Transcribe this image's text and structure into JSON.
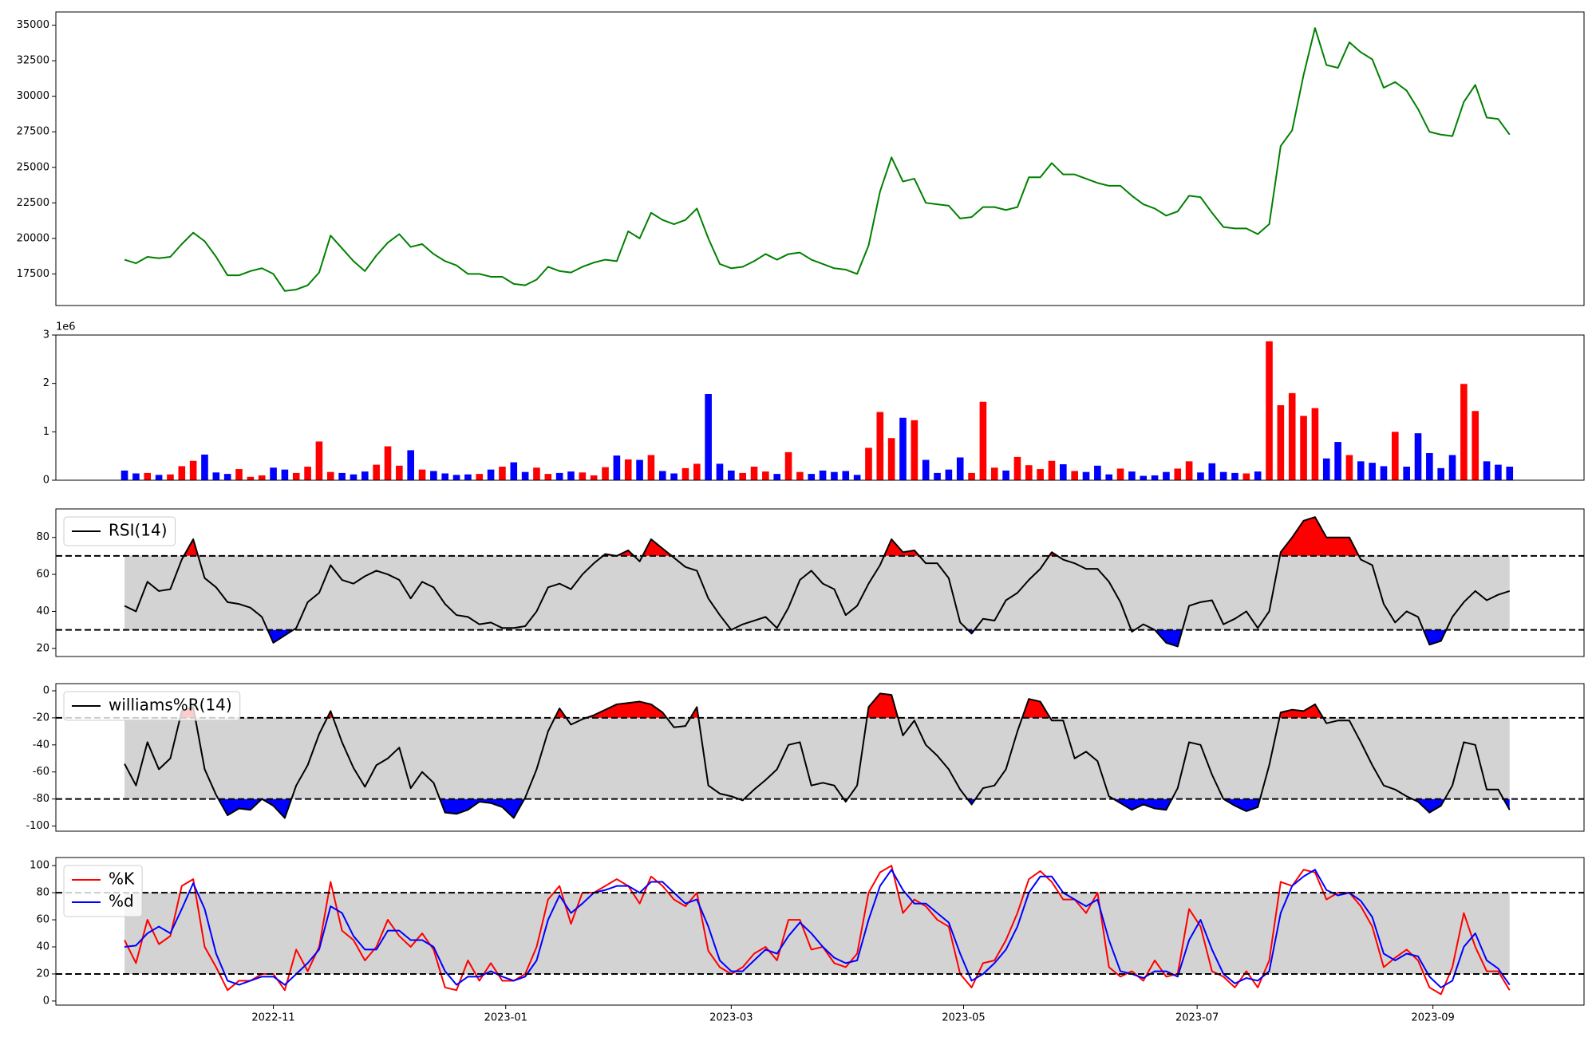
{
  "chart_data": [
    {
      "type": "line",
      "color": "green",
      "xlim": [
        -6,
        127.5
      ],
      "ylim": [
        15277,
        35932
      ],
      "yticks": [
        17500,
        20000,
        22500,
        25000,
        27500,
        30000,
        32500,
        35000
      ],
      "values": [
        18500,
        18250,
        18700,
        18600,
        18700,
        19600,
        20400,
        19800,
        18700,
        17400,
        17400,
        17700,
        17900,
        17500,
        16300,
        16400,
        16700,
        17600,
        20200,
        19300,
        18400,
        17700,
        18800,
        19700,
        20300,
        19400,
        19600,
        18900,
        18400,
        18100,
        17500,
        17500,
        17300,
        17300,
        16800,
        16700,
        17100,
        18000,
        17700,
        17600,
        18000,
        18300,
        18500,
        18400,
        20500,
        20000,
        21800,
        21300,
        21000,
        21300,
        22100,
        20000,
        18200,
        17900,
        18000,
        18400,
        18900,
        18500,
        18900,
        19000,
        18500,
        18200,
        17900,
        17800,
        17500,
        19500,
        23300,
        25700,
        24000,
        24200,
        22500,
        22400,
        22300,
        21400,
        21500,
        22200,
        22200,
        22000,
        22200,
        24300,
        24300,
        25300,
        24500,
        24500,
        24200,
        23900,
        23700,
        23700,
        23000,
        22400,
        22100,
        21600,
        21900,
        23000,
        22900,
        21800,
        20800,
        20700,
        20700,
        20300,
        21000,
        26500,
        27600,
        31500,
        34800,
        32200,
        32000,
        33800,
        33100,
        32600,
        30600,
        31000,
        30400,
        29100,
        27500,
        27300,
        27200,
        29600,
        30800,
        28500,
        28400,
        27300
      ]
    },
    {
      "type": "bar",
      "up_color": "red",
      "down_color": "blue",
      "xlim": [
        -6,
        127.5
      ],
      "ylim": [
        0,
        3000000
      ],
      "yticks": [
        0,
        {
          "value": 1000000,
          "label": "1"
        },
        {
          "value": 2000000,
          "label": "2"
        },
        {
          "value": 3000000,
          "label": "3"
        }
      ],
      "offset_text": "1e6",
      "values": [
        200000,
        140000,
        150000,
        110000,
        120000,
        290000,
        400000,
        530000,
        160000,
        130000,
        230000,
        70000,
        100000,
        260000,
        220000,
        150000,
        280000,
        800000,
        170000,
        150000,
        120000,
        180000,
        320000,
        700000,
        300000,
        620000,
        220000,
        190000,
        140000,
        110000,
        120000,
        130000,
        220000,
        280000,
        370000,
        170000,
        260000,
        130000,
        150000,
        180000,
        160000,
        100000,
        270000,
        510000,
        430000,
        420000,
        520000,
        190000,
        140000,
        250000,
        340000,
        1780000,
        340000,
        200000,
        150000,
        280000,
        180000,
        130000,
        580000,
        170000,
        130000,
        200000,
        170000,
        190000,
        110000,
        670000,
        1410000,
        870000,
        1290000,
        1240000,
        420000,
        150000,
        220000,
        470000,
        150000,
        1620000,
        260000,
        200000,
        480000,
        310000,
        230000,
        400000,
        330000,
        190000,
        170000,
        300000,
        120000,
        240000,
        180000,
        90000,
        100000,
        170000,
        240000,
        390000,
        160000,
        350000,
        170000,
        150000,
        140000,
        180000,
        2870000,
        1550000,
        1800000,
        1330000,
        1490000,
        450000,
        790000,
        520000,
        390000,
        360000,
        290000,
        1000000,
        280000,
        970000,
        560000,
        250000,
        520000,
        1990000,
        1430000,
        390000,
        320000,
        280000
      ]
    },
    {
      "type": "line",
      "xlim": [
        -6,
        127.5
      ],
      "ylim": [
        15.6,
        95.4
      ],
      "yticks": [
        20,
        40,
        60,
        80
      ],
      "upper": 70,
      "lower": 30,
      "band_color": "lightgrey",
      "upper_fill": "red",
      "lower_fill": "blue",
      "legend": "upper left",
      "series": [
        {
          "name": "RSI(14)",
          "color": "black",
          "values": [
            43,
            40,
            56,
            51,
            52,
            68,
            79,
            58,
            53,
            45,
            44,
            42,
            37,
            23,
            27,
            31,
            45,
            50,
            65,
            57,
            55,
            59,
            62,
            60,
            57,
            47,
            56,
            53,
            44,
            38,
            37,
            33,
            34,
            31,
            31,
            32,
            40,
            53,
            55,
            52,
            60,
            66,
            71,
            70,
            73,
            67,
            79,
            74,
            69,
            64,
            62,
            47,
            38,
            30,
            33,
            35,
            37,
            31,
            42,
            57,
            62,
            55,
            52,
            38,
            43,
            55,
            65,
            79,
            72,
            73,
            66,
            66,
            58,
            34,
            28,
            36,
            35,
            46,
            50,
            57,
            63,
            72,
            68,
            66,
            63,
            63,
            56,
            45,
            29,
            33,
            30,
            23,
            21,
            43,
            45,
            46,
            33,
            36,
            40,
            31,
            40,
            72,
            80,
            89,
            91,
            80,
            80,
            80,
            68,
            65,
            44,
            34,
            40,
            37,
            22,
            24,
            37,
            45,
            51,
            46,
            49,
            51
          ]
        }
      ]
    },
    {
      "type": "line",
      "xlim": [
        -6,
        127.5
      ],
      "ylim": [
        -103.8,
        5.3
      ],
      "yticks": [
        -100,
        -80,
        -60,
        -40,
        -20,
        0
      ],
      "upper": -20,
      "lower": -80,
      "band_color": "lightgrey",
      "upper_fill": "red",
      "lower_fill": "blue",
      "legend": "upper left",
      "series": [
        {
          "name": "williams%R(14)",
          "color": "black",
          "values": [
            -54,
            -70,
            -38,
            -58,
            -50,
            -15,
            -12,
            -58,
            -77,
            -92,
            -87,
            -88,
            -80,
            -85,
            -94,
            -70,
            -55,
            -32,
            -15,
            -38,
            -57,
            -71,
            -55,
            -50,
            -42,
            -72,
            -60,
            -68,
            -90,
            -91,
            -88,
            -82,
            -83,
            -86,
            -94,
            -79,
            -58,
            -30,
            -13,
            -25,
            -21,
            -18,
            -14,
            -10,
            -9,
            -8,
            -10,
            -16,
            -27,
            -26,
            -12,
            -70,
            -76,
            -78,
            -81,
            -73,
            -66,
            -58,
            -40,
            -38,
            -70,
            -68,
            -70,
            -82,
            -70,
            -12,
            -2,
            -3,
            -33,
            -22,
            -40,
            -48,
            -58,
            -73,
            -84,
            -72,
            -70,
            -58,
            -30,
            -6,
            -8,
            -22,
            -22,
            -50,
            -45,
            -52,
            -78,
            -83,
            -88,
            -84,
            -87,
            -88,
            -72,
            -38,
            -40,
            -62,
            -80,
            -85,
            -89,
            -86,
            -55,
            -16,
            -14,
            -15,
            -10,
            -24,
            -22,
            -22,
            -38,
            -55,
            -70,
            -73,
            -78,
            -82,
            -90,
            -85,
            -70,
            -38,
            -40,
            -73,
            -73,
            -88
          ]
        }
      ]
    },
    {
      "type": "line",
      "xlim": [
        -6,
        127.5
      ],
      "ylim": [
        -3,
        106
      ],
      "yticks": [
        0,
        20,
        40,
        60,
        80,
        100
      ],
      "upper": 80,
      "lower": 20,
      "band_color": "lightgrey",
      "legend": "upper left",
      "xticks": [
        {
          "value": 13,
          "label": "2022-11"
        },
        {
          "value": 33.3,
          "label": "2023-01"
        },
        {
          "value": 53,
          "label": "2023-03"
        },
        {
          "value": 73.3,
          "label": "2023-05"
        },
        {
          "value": 93.7,
          "label": "2023-07"
        },
        {
          "value": 114.3,
          "label": "2023-09"
        }
      ],
      "series": [
        {
          "name": "%K",
          "color": "red",
          "values": [
            45,
            28,
            60,
            42,
            48,
            85,
            90,
            40,
            25,
            8,
            15,
            15,
            20,
            20,
            8,
            38,
            22,
            40,
            88,
            52,
            45,
            30,
            40,
            60,
            48,
            40,
            50,
            38,
            10,
            8,
            30,
            15,
            28,
            15,
            15,
            20,
            40,
            75,
            85,
            57,
            80,
            80,
            85,
            90,
            85,
            72,
            92,
            85,
            75,
            70,
            80,
            37,
            25,
            20,
            25,
            35,
            40,
            30,
            60,
            60,
            38,
            40,
            28,
            25,
            35,
            80,
            95,
            100,
            65,
            75,
            70,
            60,
            55,
            20,
            10,
            28,
            30,
            45,
            65,
            90,
            96,
            88,
            75,
            75,
            65,
            80,
            25,
            18,
            22,
            15,
            30,
            18,
            20,
            68,
            55,
            22,
            18,
            10,
            22,
            10,
            30,
            88,
            85,
            97,
            95,
            75,
            80,
            80,
            70,
            55,
            25,
            32,
            38,
            30,
            10,
            5,
            25,
            65,
            40,
            22,
            22,
            8
          ]
        },
        {
          "name": "%d",
          "color": "blue",
          "values": [
            40,
            41,
            50,
            55,
            50,
            68,
            87,
            68,
            35,
            15,
            12,
            15,
            18,
            18,
            12,
            20,
            28,
            38,
            70,
            65,
            48,
            38,
            38,
            52,
            52,
            45,
            45,
            40,
            22,
            12,
            18,
            18,
            22,
            18,
            15,
            18,
            30,
            60,
            78,
            65,
            72,
            80,
            82,
            85,
            85,
            80,
            88,
            88,
            80,
            72,
            75,
            55,
            30,
            22,
            22,
            30,
            38,
            35,
            48,
            58,
            50,
            40,
            32,
            28,
            30,
            60,
            85,
            97,
            82,
            72,
            72,
            65,
            58,
            35,
            15,
            20,
            28,
            38,
            55,
            80,
            92,
            92,
            80,
            75,
            70,
            75,
            45,
            22,
            20,
            17,
            22,
            22,
            18,
            45,
            60,
            38,
            20,
            13,
            17,
            15,
            22,
            65,
            85,
            92,
            97,
            82,
            78,
            80,
            74,
            62,
            35,
            30,
            35,
            33,
            18,
            10,
            15,
            40,
            50,
            30,
            24,
            12
          ]
        }
      ]
    }
  ]
}
